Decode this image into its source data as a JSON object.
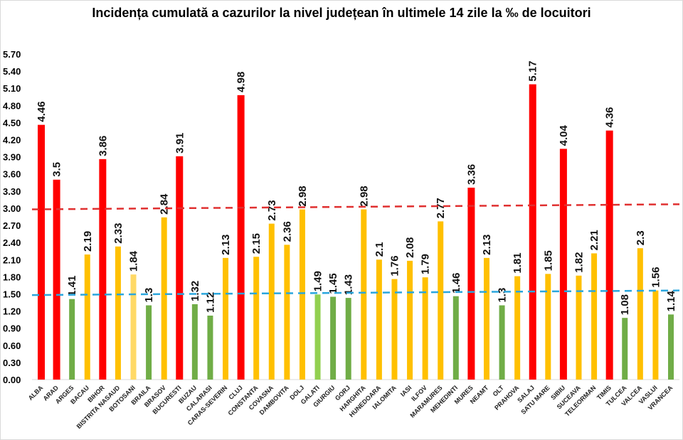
{
  "chart_data": {
    "type": "bar",
    "title": "Incidența cumulată a cazurilor la nivel județean în ultimele 14 zile la ‰ de locuitori",
    "xlabel": "",
    "ylabel": "",
    "ylim": [
      0,
      5.7
    ],
    "yticks": [
      "0.00",
      "0.30",
      "0.60",
      "0.90",
      "1.20",
      "1.50",
      "1.80",
      "2.10",
      "2.40",
      "2.70",
      "3.00",
      "3.30",
      "3.60",
      "3.90",
      "4.20",
      "4.50",
      "4.80",
      "5.10",
      "5.40",
      "5.70"
    ],
    "grid": false,
    "categories": [
      "ALBA",
      "ARAD",
      "ARGES",
      "BACAU",
      "BIHOR",
      "BISTRITA NASAUD",
      "BOTOSANI",
      "BRAILA",
      "BRASOV",
      "BUCURESTI",
      "BUZAU",
      "CALARASI",
      "CARAS-SEVERIN",
      "CLUJ",
      "CONSTANTA",
      "COVASNA",
      "DAMBOVITA",
      "DOLJ",
      "GALATI",
      "GIURGIU",
      "GORJ",
      "HARGHITA",
      "HUNEDOARA",
      "IALOMITA",
      "IASI",
      "ILFOV",
      "MARAMURES",
      "MEHEDINTI",
      "MURES",
      "NEAMT",
      "OLT",
      "PRAHOVA",
      "SALAJ",
      "SATU MARE",
      "SIBIU",
      "SUCEAVA",
      "TELEORMAN",
      "TIMIS",
      "TULCEA",
      "VALCEA",
      "VASLUI",
      "VRANCEA"
    ],
    "values": [
      4.46,
      3.5,
      1.41,
      2.19,
      3.86,
      2.33,
      1.84,
      1.3,
      2.84,
      3.91,
      1.32,
      1.12,
      2.13,
      4.98,
      2.15,
      2.73,
      2.36,
      2.98,
      1.49,
      1.45,
      1.43,
      2.98,
      2.1,
      1.76,
      2.08,
      1.79,
      2.77,
      1.46,
      3.36,
      2.13,
      1.3,
      1.81,
      5.17,
      1.85,
      4.04,
      1.82,
      2.21,
      4.36,
      1.08,
      2.3,
      1.56,
      1.14
    ],
    "data_labels": [
      "4.46",
      "3.5",
      "1.41",
      "2.19",
      "3.86",
      "2.33",
      "1.84",
      "1.3",
      "2.84",
      "3.91",
      "1.32",
      "1.12",
      "2.13",
      "4.98",
      "2.15",
      "2.73",
      "2.36",
      "2.98",
      "1.49",
      "1.45",
      "1.43",
      "2.98",
      "2.1",
      "1.76",
      "2.08",
      "1.79",
      "2.77",
      "1.46",
      "3.36",
      "2.13",
      "1.3",
      "1.81",
      "5.17",
      "1.85",
      "4.04",
      "1.82",
      "2.21",
      "4.36",
      "1.08",
      "2.3",
      "1.56",
      "1.14"
    ],
    "colors": {
      "red": "#ff0000",
      "yellow": "#ffc000",
      "light_yellow": "#ffd966",
      "green": "#70ad47",
      "light_green": "#92d050"
    },
    "special_colors": {
      "BOTOSANI": "#ffd966",
      "GALATI": "#92d050"
    },
    "reference_lines": [
      {
        "value": 3.0,
        "color": "#e03030",
        "style": "dashed"
      },
      {
        "value": 1.5,
        "color": "#2aa6dd",
        "style": "dashed"
      }
    ]
  }
}
